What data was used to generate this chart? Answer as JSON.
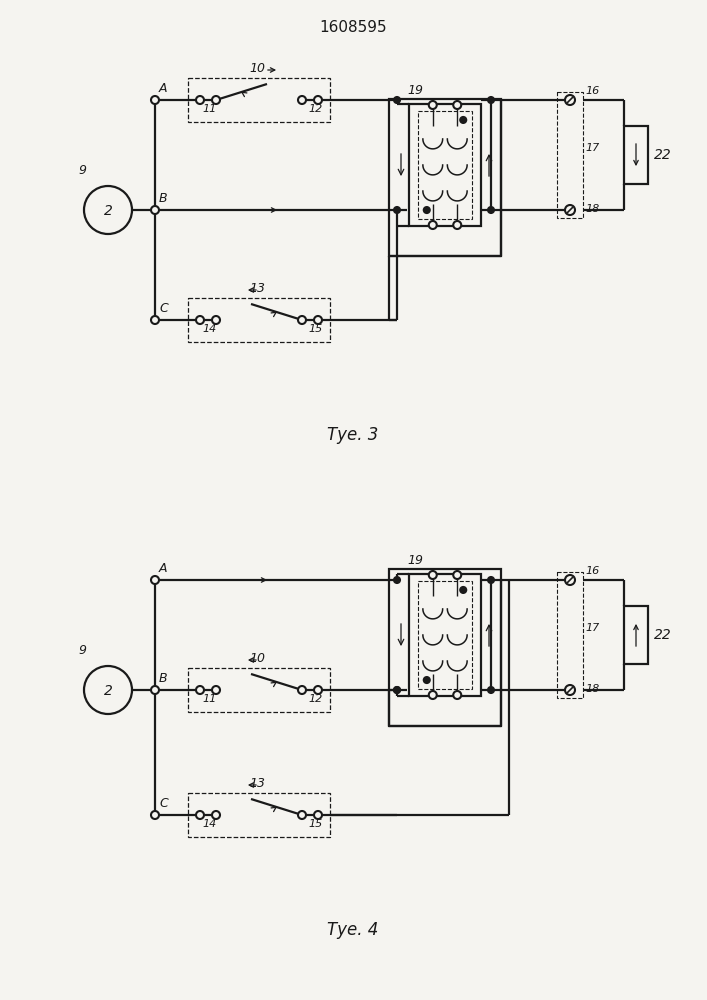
{
  "title": "1608595",
  "fig3_label": "Τуе. 3",
  "fig4_label": "Τуе. 4",
  "bg_color": "#f5f4f0",
  "line_color": "#1a1a1a",
  "lw": 1.6
}
